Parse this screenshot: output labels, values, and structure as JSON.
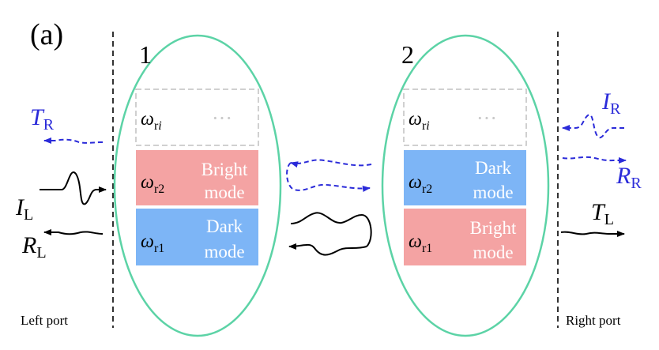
{
  "panel_label": "(a)",
  "resonator_1": {
    "label": "1",
    "modes": [
      {
        "symbol": "ω",
        "sub": "ri",
        "sub_italic_tail": "i",
        "type_line1": "",
        "type_line2": "",
        "placeholder": "···",
        "color": "#ffffff",
        "border": "#c0c0c0"
      },
      {
        "symbol": "ω",
        "sub": "r2",
        "type_line1": "Bright",
        "type_line2": "mode",
        "color": "#f4a3a3"
      },
      {
        "symbol": "ω",
        "sub": "r1",
        "type_line1": "Dark",
        "type_line2": "mode",
        "color": "#7db5f6"
      }
    ]
  },
  "resonator_2": {
    "label": "2",
    "modes": [
      {
        "symbol": "ω",
        "sub": "ri",
        "placeholder": "···",
        "color": "#ffffff",
        "border": "#c0c0c0"
      },
      {
        "symbol": "ω",
        "sub": "r2",
        "type_line1": "Dark",
        "type_line2": "mode",
        "color": "#7db5f6"
      },
      {
        "symbol": "ω",
        "sub": "r1",
        "type_line1": "Bright",
        "type_line2": "mode",
        "color": "#f4a3a3"
      }
    ]
  },
  "signals": {
    "T_R": {
      "main": "T",
      "sub": "R",
      "color": "#2b2bd9"
    },
    "I_L": {
      "main": "I",
      "sub": "L",
      "color": "#000000"
    },
    "R_L": {
      "main": "R",
      "sub": "L",
      "color": "#000000"
    },
    "I_R": {
      "main": "I",
      "sub": "R",
      "color": "#2b2bd9"
    },
    "R_R": {
      "main": "R",
      "sub": "R",
      "color": "#2b2bd9"
    },
    "T_L": {
      "main": "T",
      "sub": "L",
      "color": "#000000"
    }
  },
  "ports": {
    "left": "Left port",
    "right": "Right port"
  },
  "colors": {
    "ellipse": "#5cd3a6",
    "forward_signal": "#000000",
    "backward_signal": "#2b2bd9",
    "placeholder_dots": "#c8c8c8"
  }
}
